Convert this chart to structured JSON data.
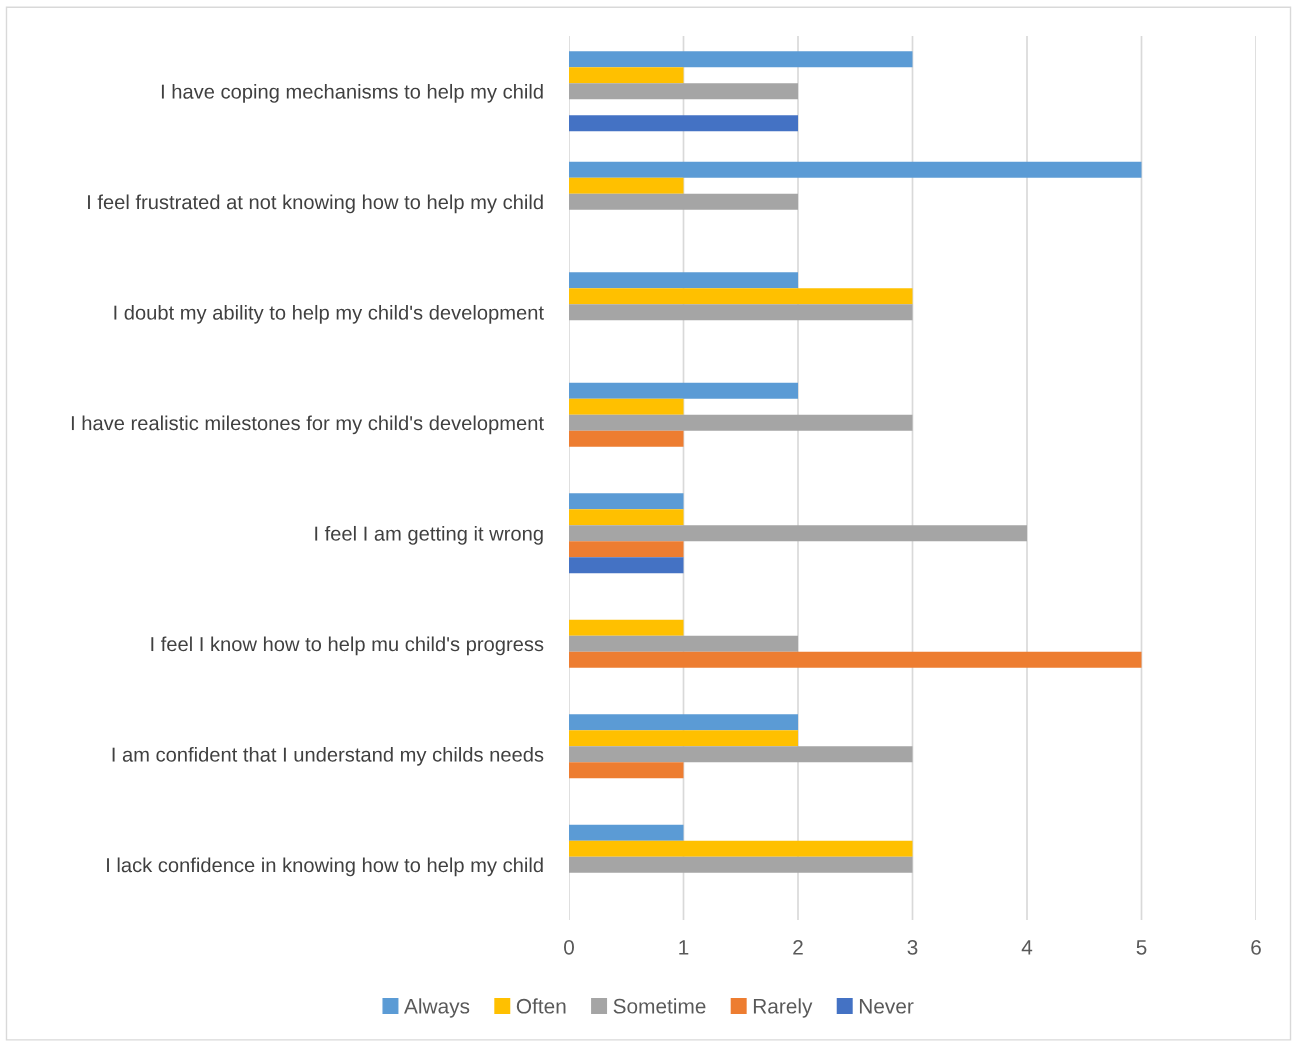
{
  "chart_data": {
    "type": "bar",
    "orientation": "horizontal",
    "categories": [
      "I have coping mechanisms to help my child",
      "I feel frustrated at not knowing how to help my child",
      "I doubt my ability to help my child's development",
      "I have realistic milestones for my child's development",
      "I feel I am getting it wrong",
      "I feel I know how to help mu child's progress",
      "I am confident that I understand my childs needs",
      "I lack confidence in knowing how to help my child"
    ],
    "series": [
      {
        "name": "Always",
        "color": "#5b9bd5",
        "values": [
          3,
          5,
          2,
          2,
          1,
          null,
          2,
          1
        ]
      },
      {
        "name": "Often",
        "color": "#ffc000",
        "values": [
          1,
          1,
          3,
          1,
          1,
          1,
          2,
          3
        ]
      },
      {
        "name": "Sometime",
        "color": "#a5a5a5",
        "values": [
          2,
          2,
          3,
          3,
          4,
          2,
          3,
          3
        ]
      },
      {
        "name": "Rarely",
        "color": "#ed7d31",
        "values": [
          null,
          null,
          null,
          1,
          1,
          5,
          1,
          null
        ]
      },
      {
        "name": "Never",
        "color": "#4472c4",
        "values": [
          2,
          null,
          null,
          null,
          1,
          null,
          null,
          null
        ]
      }
    ],
    "xlim": [
      0,
      6
    ],
    "xticks": [
      0,
      1,
      2,
      3,
      4,
      5,
      6
    ],
    "grid": "x",
    "legend": "bottom"
  }
}
